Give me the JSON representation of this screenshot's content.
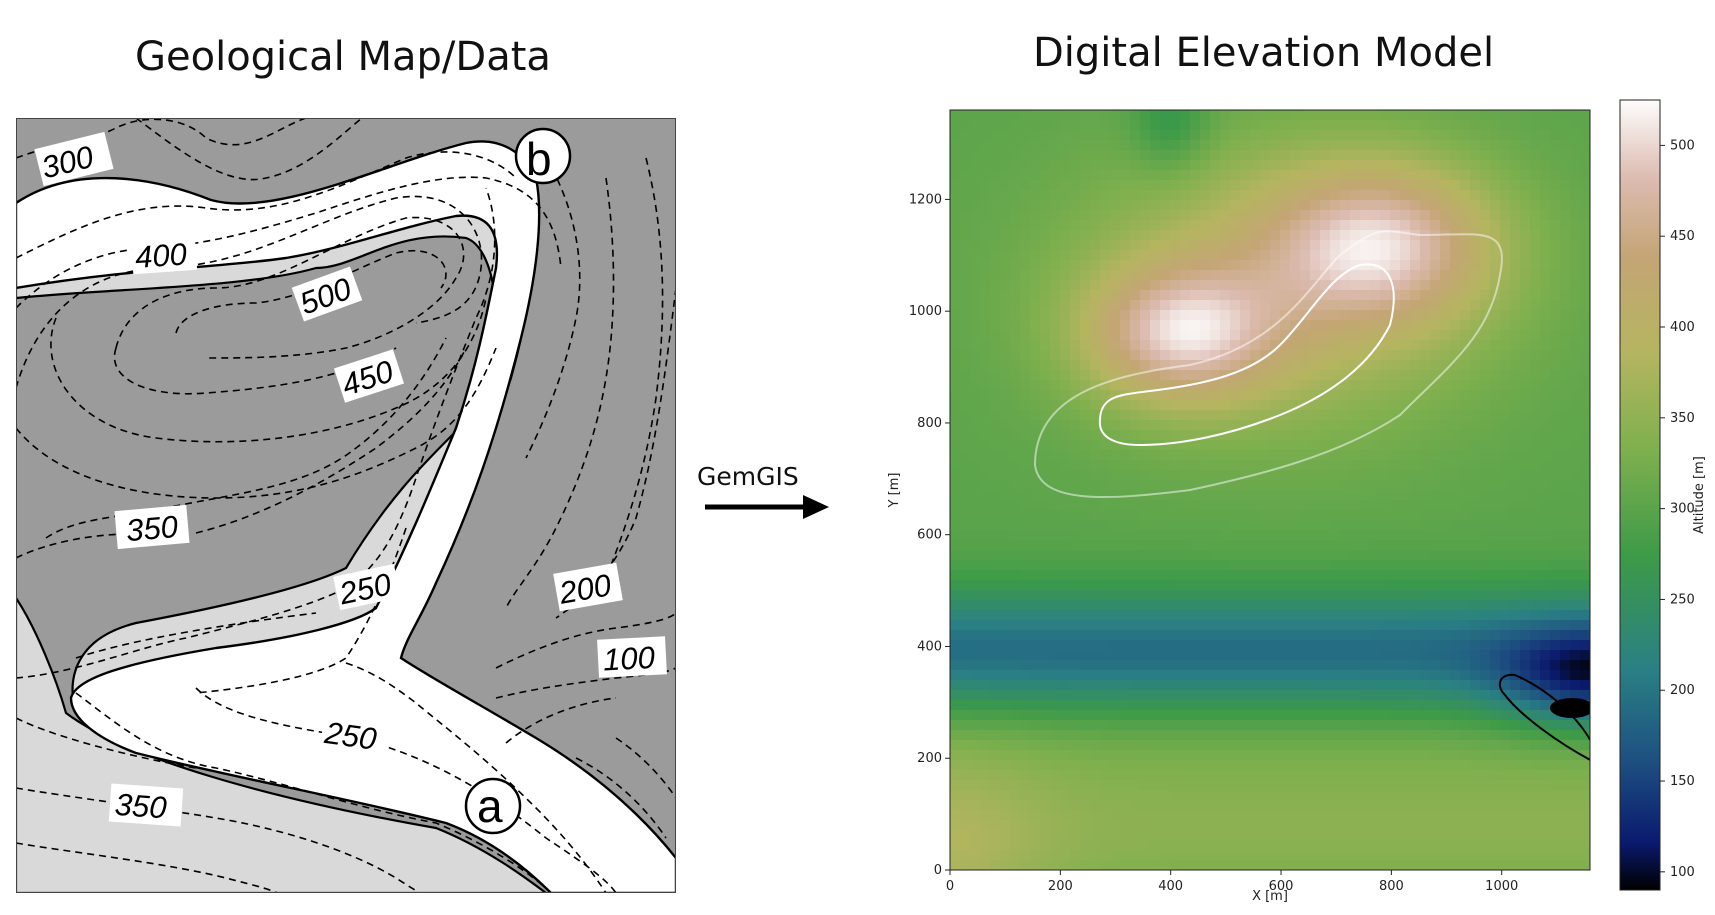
{
  "titles": {
    "left": "Geological Map/Data",
    "right": "Digital Elevation Model"
  },
  "geological_map": {
    "contour_labels": [
      "300",
      "400",
      "500",
      "450",
      "350",
      "250",
      "200",
      "100",
      "250",
      "350"
    ],
    "points": {
      "a": "a",
      "b": "b"
    },
    "colors": {
      "dark_unit": "#9b9b9b",
      "light_unit": "#d9d9d9",
      "band": "#ffffff"
    }
  },
  "arrow": {
    "label": "GemGIS"
  },
  "chart_data": {
    "type": "heatmap",
    "title": "",
    "xlabel": "X [m]",
    "ylabel": "Y [m]",
    "xlim": [
      0,
      1160
    ],
    "ylim": [
      0,
      1360
    ],
    "xticks": [
      "0",
      "200",
      "400",
      "600",
      "800",
      "1000"
    ],
    "yticks": [
      "0",
      "200",
      "400",
      "600",
      "800",
      "1000",
      "1200"
    ],
    "colorbar": {
      "label": "Altitude [m]",
      "range": [
        90,
        525
      ],
      "ticks": [
        "100",
        "150",
        "200",
        "250",
        "300",
        "350",
        "400",
        "450",
        "500"
      ],
      "colormap": "gist_earth"
    },
    "features": [
      {
        "kind": "peak",
        "x": 400,
        "y": 960,
        "value": 520
      },
      {
        "kind": "peak",
        "x": 800,
        "y": 1150,
        "value": 510
      },
      {
        "kind": "low",
        "x": 1160,
        "y": 340,
        "value": 95
      },
      {
        "kind": "low",
        "x": 700,
        "y": 410,
        "value": 170
      }
    ]
  }
}
